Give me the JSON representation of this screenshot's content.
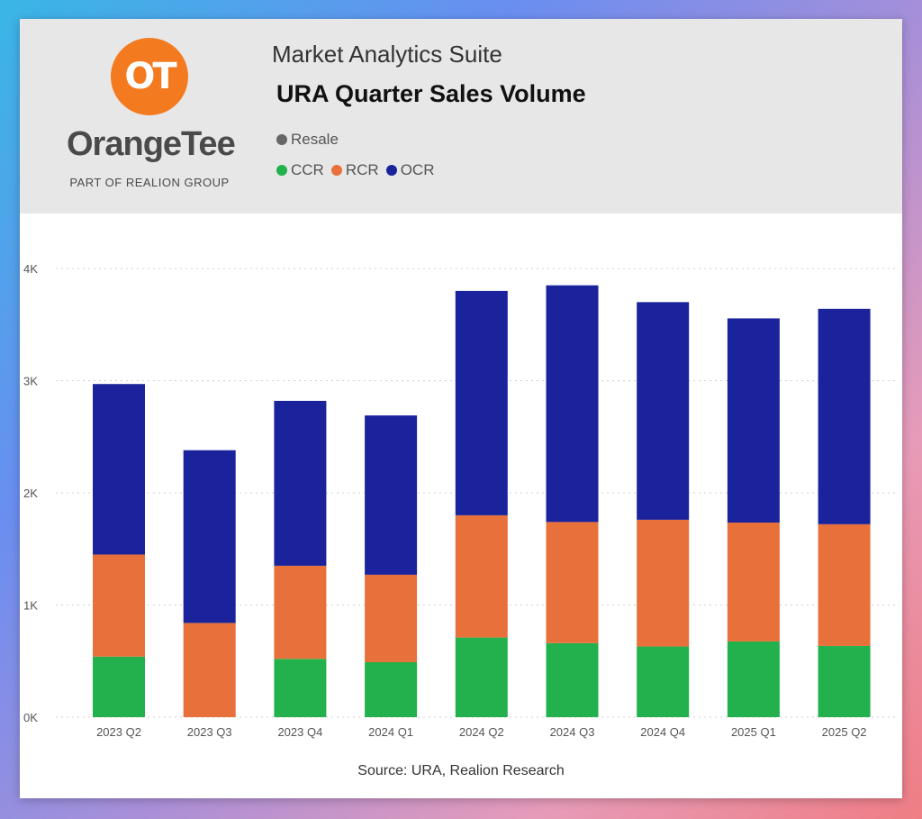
{
  "header": {
    "brand": {
      "mark": "OT",
      "name": "OrangeTee",
      "tagline": "PART OF REALION GROUP"
    },
    "suite": "Market Analytics Suite",
    "title": "URA Quarter Sales Volume",
    "legend_type": {
      "label": "Resale",
      "color": "#666666"
    }
  },
  "colors": {
    "CCR": "#22b14c",
    "RCR": "#e8703a",
    "OCR": "#1a239c",
    "grid": "#cfcfcf",
    "axis_text": "#555555"
  },
  "chart_data": {
    "type": "bar",
    "stacked": true,
    "title": "URA Quarter Sales Volume",
    "xlabel": "",
    "ylabel": "",
    "ylim": [
      0,
      4000
    ],
    "yticks": [
      0,
      1000,
      2000,
      3000,
      4000
    ],
    "ytick_labels": [
      "0K",
      "1K",
      "2K",
      "3K",
      "4K"
    ],
    "categories": [
      "2023 Q2",
      "2023 Q3",
      "2023 Q4",
      "2024 Q1",
      "2024 Q2",
      "2024 Q3",
      "2024 Q4",
      "2025 Q1",
      "2025 Q2"
    ],
    "series": [
      {
        "name": "CCR",
        "values": [
          540,
          0,
          520,
          490,
          710,
          660,
          630,
          675,
          635
        ]
      },
      {
        "name": "RCR",
        "values": [
          910,
          840,
          830,
          780,
          1090,
          1080,
          1130,
          1060,
          1085
        ]
      },
      {
        "name": "OCR",
        "values": [
          1520,
          1540,
          1470,
          1420,
          2000,
          2110,
          1940,
          1820,
          1920
        ]
      }
    ],
    "legend": [
      "CCR",
      "RCR",
      "OCR"
    ],
    "legend_position": "top-left",
    "grid": true,
    "source": "Source: URA, Realion Research"
  }
}
